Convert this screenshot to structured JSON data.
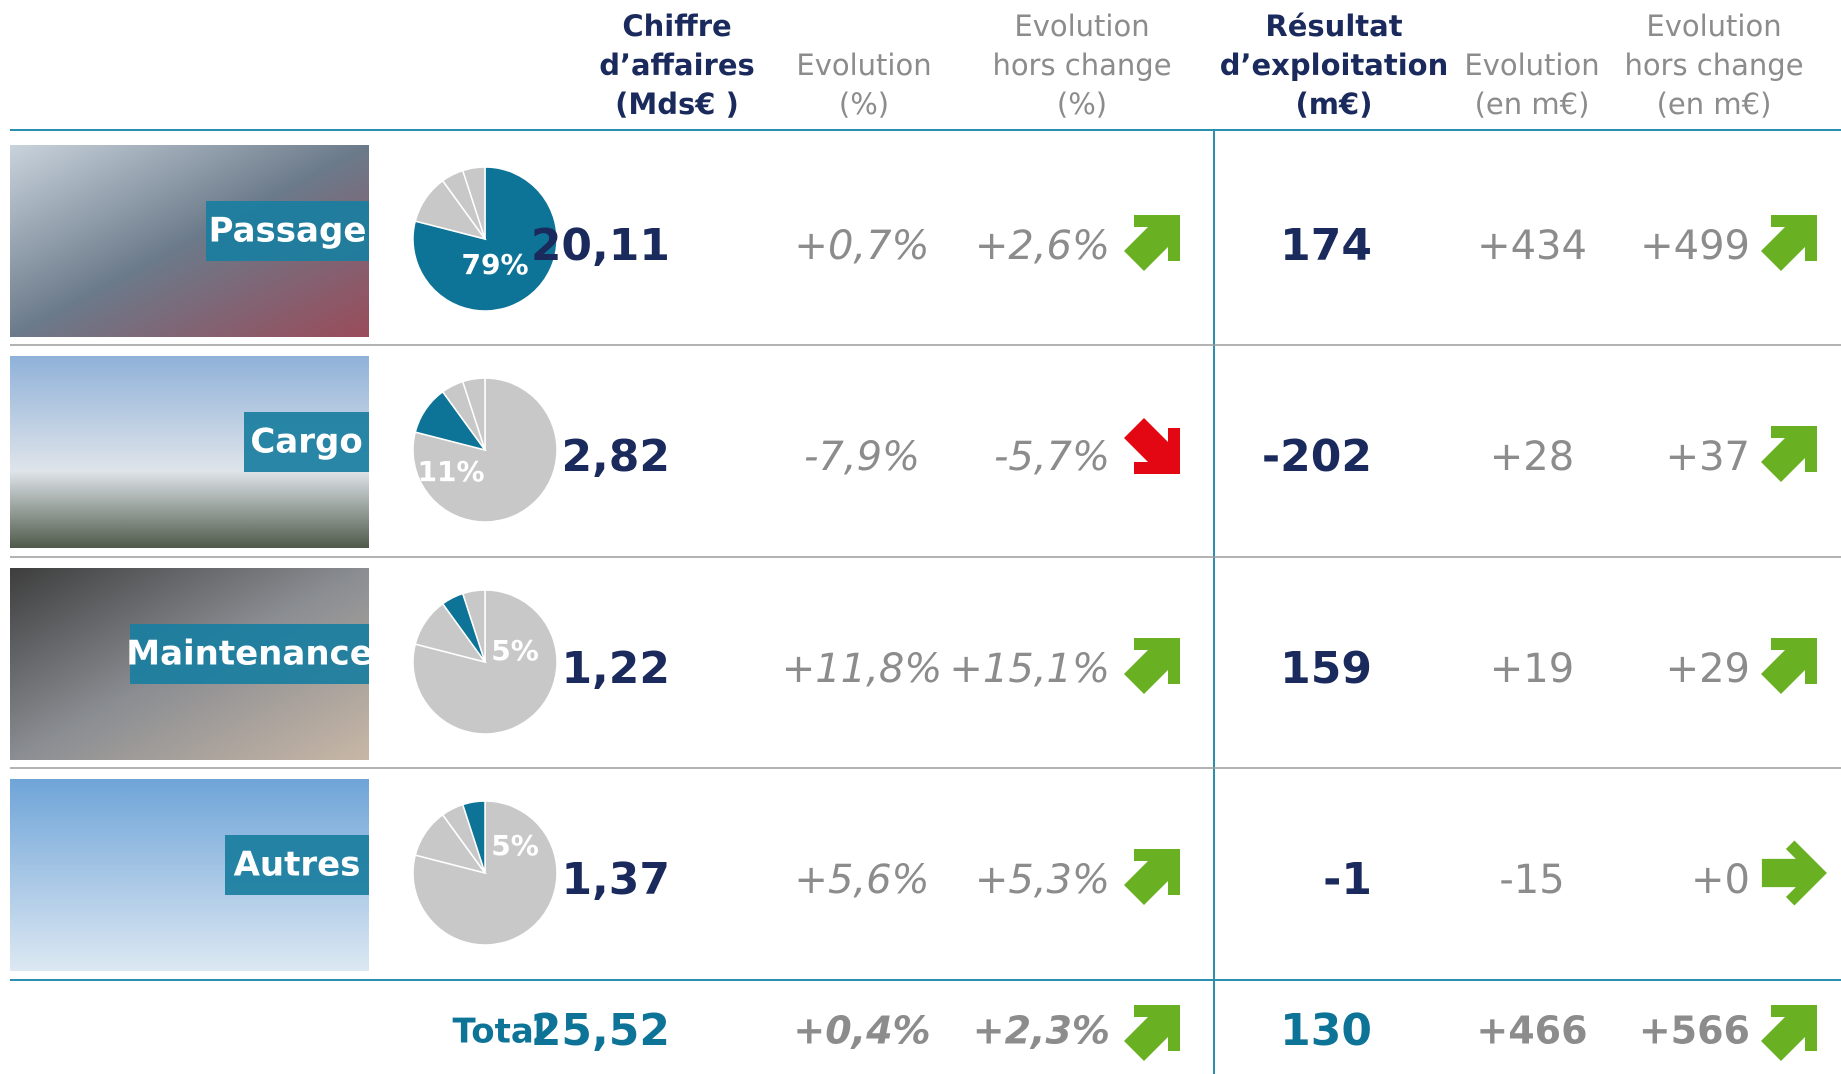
{
  "header": {
    "columns": [
      [
        "Chiffre",
        "d’affaires",
        "(Mds€ )"
      ],
      [
        "Evolution",
        "(%)"
      ],
      [
        "Evolution",
        "hors change",
        "(%)"
      ],
      [
        "Résultat",
        "d’exploitation",
        "(m€)"
      ],
      [
        "Evolution",
        "(en m€)"
      ],
      [
        "Evolution",
        "hors change",
        "(en m€)"
      ]
    ]
  },
  "rows": [
    {
      "label": "Passage",
      "share": {
        "value": 79,
        "label": "79%"
      },
      "ca": "20,11",
      "evol": "+0,7%",
      "evol_hc": "+2,6%",
      "result": "174",
      "evol_m": "+434",
      "evol_m_hc": "+499"
    },
    {
      "label": "Cargo",
      "share": {
        "value": 11,
        "label": "11%"
      },
      "ca": "2,82",
      "evol": "-7,9%",
      "evol_hc": "-5,7%",
      "result": "-202",
      "evol_m": "+28",
      "evol_m_hc": "+37"
    },
    {
      "label": "Maintenance",
      "share": {
        "value": 5,
        "label": "5%"
      },
      "ca": "1,22",
      "evol": "+11,8%",
      "evol_hc": "+15,1%",
      "result": "159",
      "evol_m": "+19",
      "evol_m_hc": "+29"
    },
    {
      "label": "Autres",
      "share": {
        "value": 5,
        "label": "5%"
      },
      "ca": "1,37",
      "evol": "+5,6%",
      "evol_hc": "+5,3%",
      "result": "-1",
      "evol_m": "-15",
      "evol_m_hc": "+0"
    }
  ],
  "total": {
    "label": "Total",
    "ca": "25,52",
    "evol": "+0,4%",
    "evol_hc": "+2,3%",
    "result": "130",
    "evol_m": "+466",
    "evol_m_hc": "+566"
  }
}
